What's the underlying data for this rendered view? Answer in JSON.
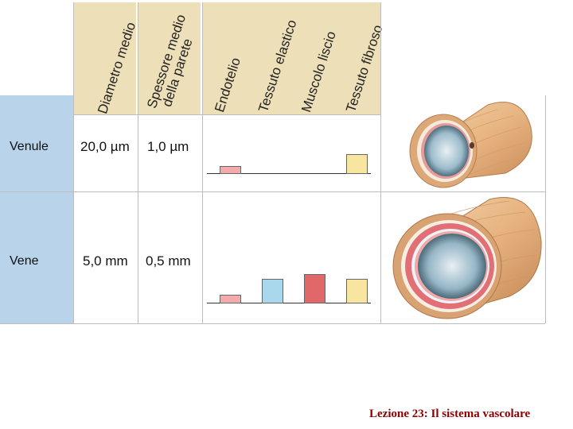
{
  "headers": [
    "Diametro medio",
    "Spessore medio\ndella parete",
    "Endotelio",
    "Tessuto elastico",
    "Muscolo liscio",
    "Tessuto fibroso"
  ],
  "rows": [
    {
      "label": "Venule",
      "diameter": "20,0 µm",
      "wall": "1,0 µm",
      "tissues": {
        "endothelium": 1,
        "elastic": 0,
        "smooth_muscle": 0,
        "fibrous": 1
      }
    },
    {
      "label": "Vene",
      "diameter": "5,0 mm",
      "wall": "0,5 mm",
      "tissues": {
        "endothelium": 1,
        "elastic": 1,
        "smooth_muscle": 1,
        "fibrous": 1
      }
    }
  ],
  "tissue_colors": {
    "endothelium": "#f2aaaa",
    "elastic": "#a9d8ec",
    "smooth_muscle": "#e06868",
    "fibrous": "#f8e6a0"
  },
  "footer": "Lezione 23: Il sistema vascolare"
}
